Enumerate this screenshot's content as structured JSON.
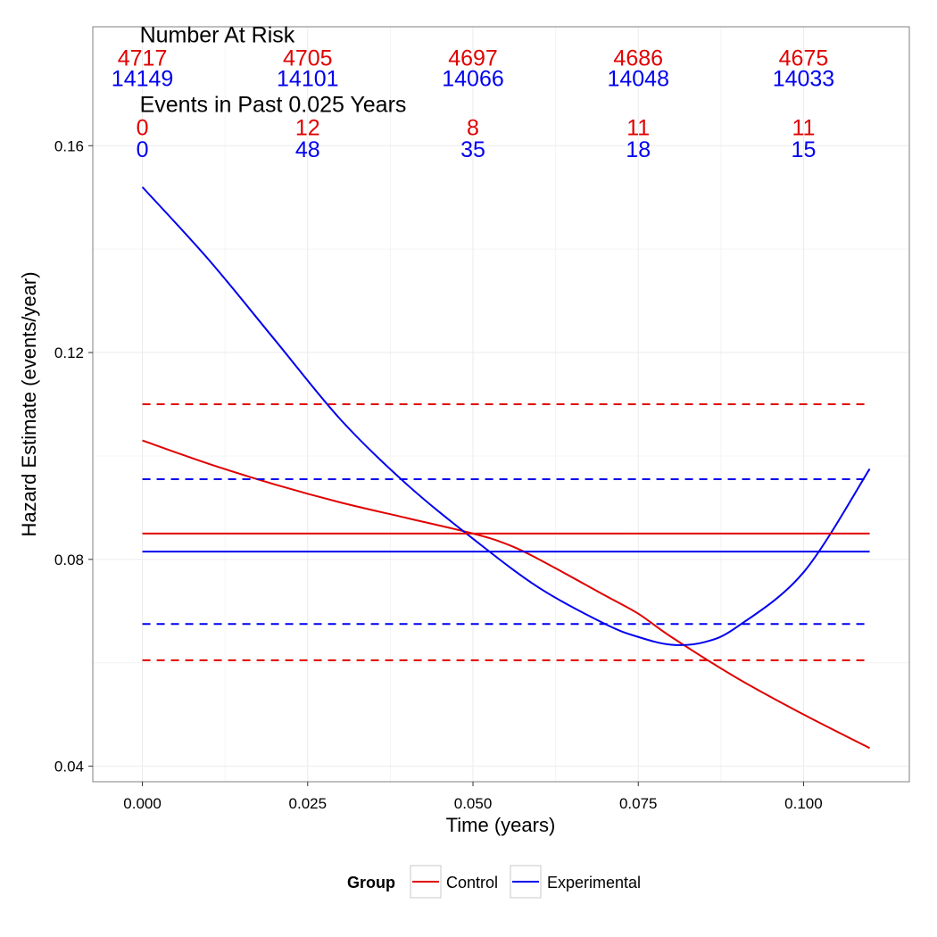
{
  "colors": {
    "control": "#e00000",
    "experimental": "#0000ee",
    "grid": "#ebebeb",
    "panel_border": "#7f7f7f"
  },
  "legend": {
    "title": "Group",
    "items": [
      "Control",
      "Experimental"
    ]
  },
  "annotations": {
    "risk_title": "Number At Risk",
    "events_title": "Events in Past 0.025 Years",
    "x_positions": [
      0.0,
      0.025,
      0.05,
      0.075,
      0.1
    ],
    "risk_control": [
      "4717",
      "4705",
      "4697",
      "4686",
      "4675"
    ],
    "risk_experimental": [
      "14149",
      "14101",
      "14066",
      "14048",
      "14033"
    ],
    "events_control": [
      "0",
      "12",
      "8",
      "11",
      "11"
    ],
    "events_experimental": [
      "0",
      "48",
      "35",
      "18",
      "15"
    ]
  },
  "chart_data": {
    "type": "line",
    "xlabel": "Time (years)",
    "ylabel": "Hazard Estimate (events/year)",
    "xlim": [
      -0.0075,
      0.116
    ],
    "ylim": [
      0.037,
      0.183
    ],
    "xticks": [
      0.0,
      0.025,
      0.05,
      0.075,
      0.1
    ],
    "xtick_labels": [
      "0.000",
      "0.025",
      "0.050",
      "0.075",
      "0.100"
    ],
    "yticks": [
      0.04,
      0.08,
      0.12,
      0.16
    ],
    "ytick_labels": [
      "0.04",
      "0.08",
      "0.12",
      "0.16"
    ],
    "grid": true,
    "legend_position": "bottom",
    "series": [
      {
        "name": "Control",
        "group": "Control",
        "style": "solid",
        "x": [
          0.0,
          0.01,
          0.02,
          0.03,
          0.04,
          0.05,
          0.055,
          0.06,
          0.07,
          0.075,
          0.08,
          0.09,
          0.1,
          0.11
        ],
        "y": [
          0.103,
          0.0985,
          0.0945,
          0.091,
          0.088,
          0.085,
          0.083,
          0.08,
          0.073,
          0.0695,
          0.065,
          0.057,
          0.05,
          0.0435
        ]
      },
      {
        "name": "Experimental",
        "group": "Experimental",
        "style": "solid",
        "x": [
          0.0,
          0.01,
          0.02,
          0.03,
          0.04,
          0.05,
          0.06,
          0.07,
          0.075,
          0.08,
          0.085,
          0.09,
          0.1,
          0.11
        ],
        "y": [
          0.152,
          0.138,
          0.1225,
          0.107,
          0.0945,
          0.084,
          0.0745,
          0.0675,
          0.065,
          0.0635,
          0.064,
          0.067,
          0.0775,
          0.0975
        ]
      },
      {
        "group": "Control",
        "style": "solid",
        "x": [
          0.0,
          0.11
        ],
        "y": [
          0.085,
          0.085
        ]
      },
      {
        "group": "Control",
        "style": "dashed",
        "x": [
          0.0,
          0.11
        ],
        "y": [
          0.11,
          0.11
        ]
      },
      {
        "group": "Control",
        "style": "dashed",
        "x": [
          0.0,
          0.11
        ],
        "y": [
          0.0605,
          0.0605
        ]
      },
      {
        "group": "Experimental",
        "style": "solid",
        "x": [
          0.0,
          0.11
        ],
        "y": [
          0.0815,
          0.0815
        ]
      },
      {
        "group": "Experimental",
        "style": "dashed",
        "x": [
          0.0,
          0.11
        ],
        "y": [
          0.0955,
          0.0955
        ]
      },
      {
        "group": "Experimental",
        "style": "dashed",
        "x": [
          0.0,
          0.11
        ],
        "y": [
          0.0675,
          0.0675
        ]
      }
    ]
  }
}
